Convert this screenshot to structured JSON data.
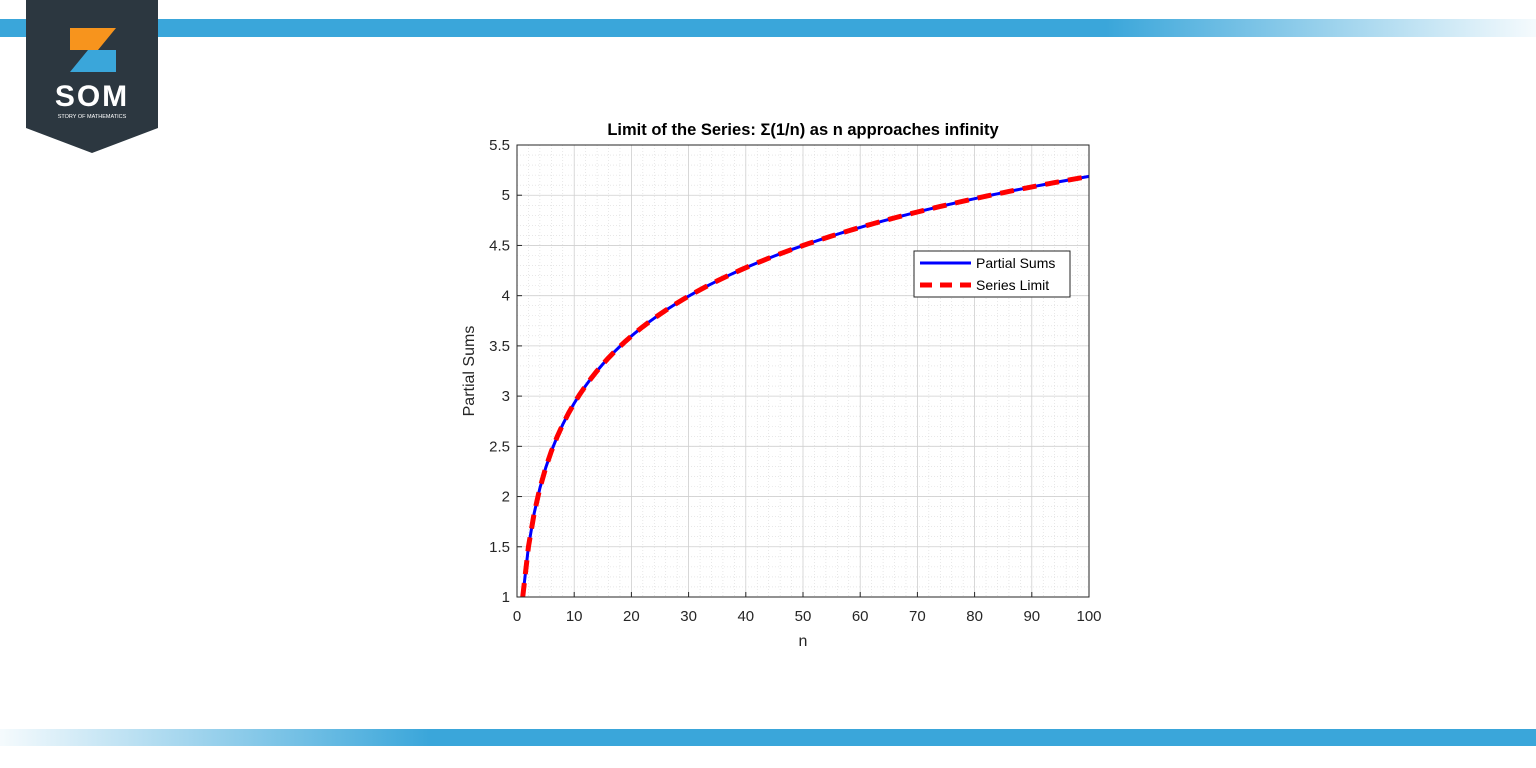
{
  "brand": {
    "name": "SOM",
    "tagline": "STORY OF MATHEMATICS",
    "colors": {
      "dark": "#2c3740",
      "orange": "#f7941d",
      "blue": "#3aa6da"
    }
  },
  "decor": {
    "band_color": "#3aa6da"
  },
  "chart_data": {
    "type": "line",
    "title": "Limit of the Series: Σ(1/n) as n approaches infinity",
    "xlabel": "n",
    "ylabel": "Partial Sums",
    "xlim": [
      0,
      100
    ],
    "ylim": [
      1,
      5.5
    ],
    "x_ticks": [
      "0",
      "10",
      "20",
      "30",
      "40",
      "50",
      "60",
      "70",
      "80",
      "90",
      "100"
    ],
    "y_ticks": [
      "1",
      "1.5",
      "2",
      "2.5",
      "3",
      "3.5",
      "4",
      "4.5",
      "5",
      "5.5"
    ],
    "grid": true,
    "minor_grid": true,
    "legend_position": "upper-right",
    "series": [
      {
        "name": "Partial Sums",
        "formula": "sum 1/k for k = 1..n",
        "n_range": [
          1,
          100
        ],
        "color": "#0000ff",
        "style": "solid"
      },
      {
        "name": "Series Limit",
        "formula": "sum 1/k for k = 1..n",
        "n_range": [
          1,
          100
        ],
        "color": "#ff0000",
        "style": "dashed"
      }
    ]
  }
}
